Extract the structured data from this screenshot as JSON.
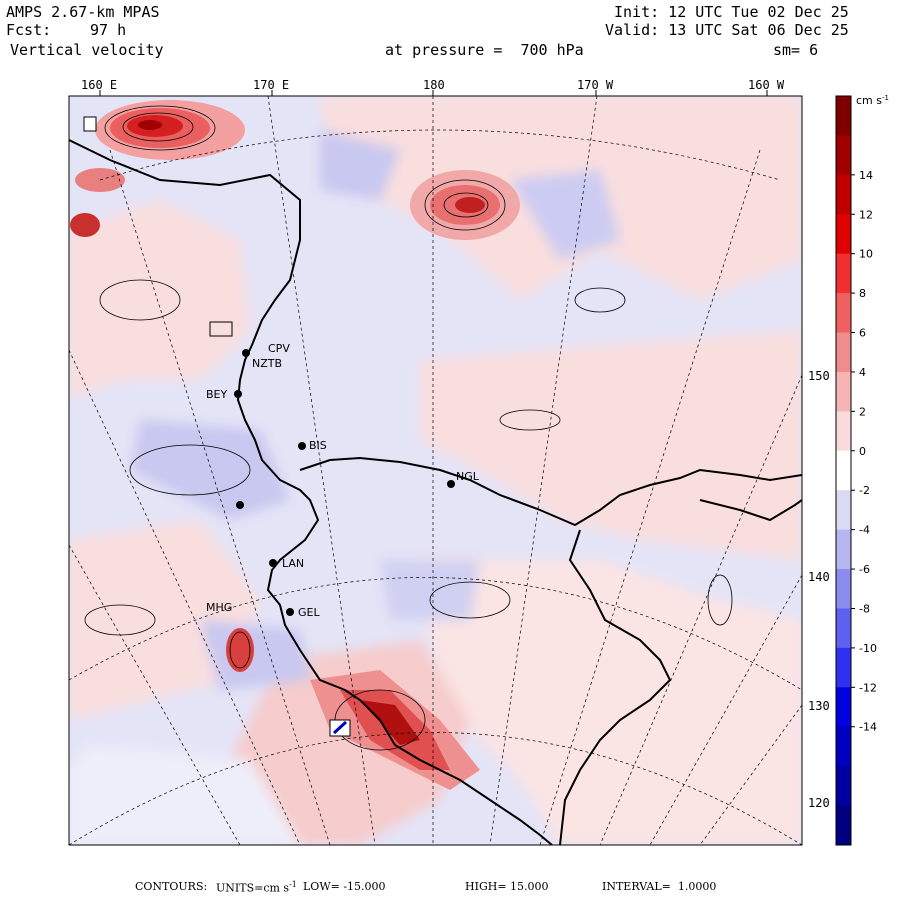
{
  "header": {
    "model": "AMPS 2.67-km MPAS",
    "init": "Init: 12 UTC Tue 02 Dec 25",
    "fcst_label": "Fcst:",
    "fcst_value": "97 h",
    "valid": "Valid: 13 UTC Sat 06 Dec 25",
    "field": "Vertical velocity",
    "level": "at pressure =  700 hPa",
    "smooth": "sm= 6"
  },
  "longitude_labels": [
    "160 E",
    "170 E",
    "180",
    "170 W",
    "160 W"
  ],
  "latitude_labels": [
    "150 W",
    "140 W",
    "130 W",
    "120 W"
  ],
  "stations": [
    "CPV",
    "NZTB",
    "BEY",
    "BIS",
    "NGL",
    "LAN",
    "MHG",
    "GEL"
  ],
  "colorbar": {
    "units": "cm s",
    "units_exp": "-1",
    "ticks": [
      "14",
      "12",
      "10",
      "8",
      "6",
      "4",
      "2",
      "0",
      "-2",
      "-4",
      "-6",
      "-8",
      "-10",
      "-12",
      "-14"
    ],
    "colors": [
      "#800000",
      "#a00000",
      "#c00000",
      "#e00000",
      "#f03030",
      "#f06060",
      "#f08c8c",
      "#f5b5b5",
      "#fadada",
      "#ffffff",
      "#dadaf5",
      "#b5b5f0",
      "#8c8cf0",
      "#6060f0",
      "#3030f0",
      "#0000e0",
      "#0000c0",
      "#0000a0",
      "#000080"
    ]
  },
  "footer": {
    "contours": "CONTOURS:",
    "units": "UNITS=cm s",
    "units_exp": "-1",
    "low": "LOW= -15.000",
    "high": "HIGH= 15.000",
    "interval": "INTERVAL=  1.0000"
  }
}
